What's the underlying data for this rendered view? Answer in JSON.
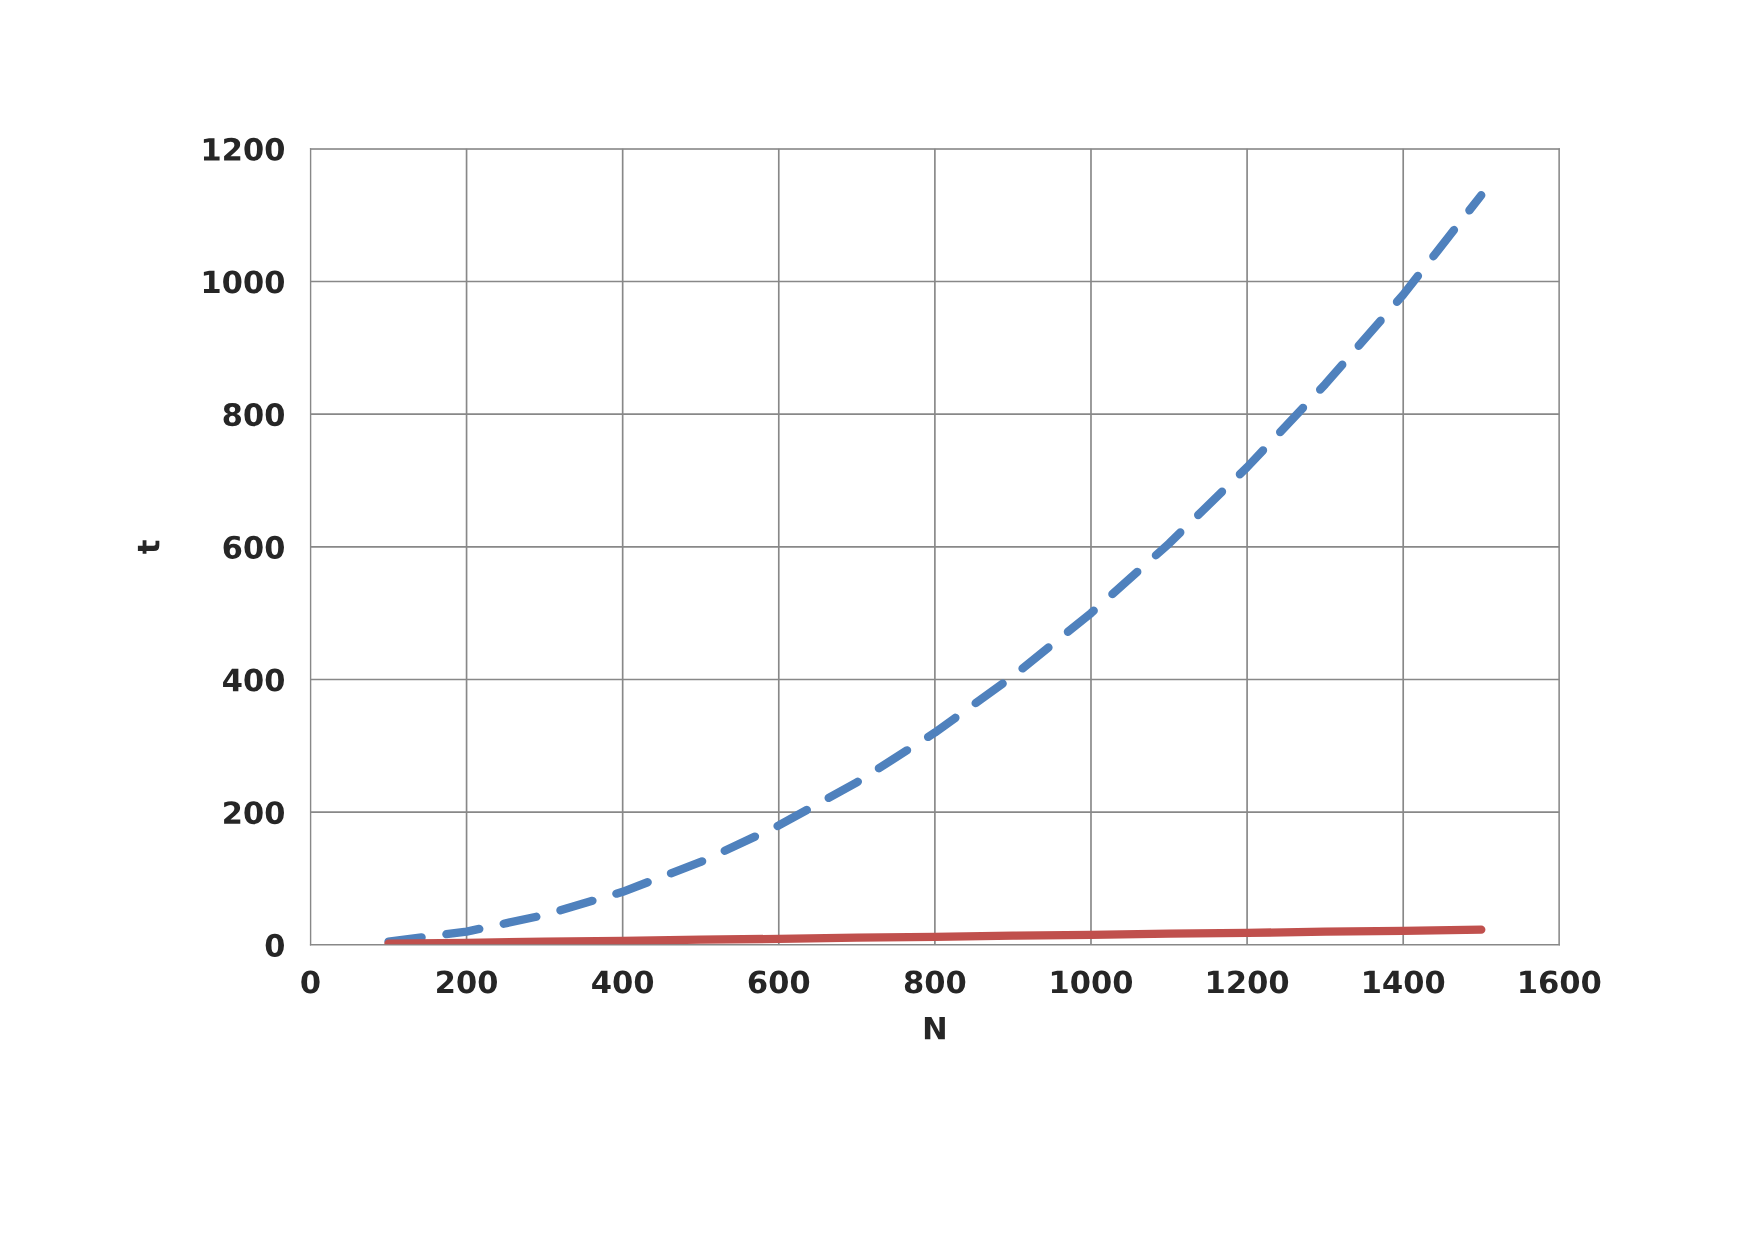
{
  "chart_data": {
    "type": "line",
    "xlabel": "N",
    "ylabel": "t",
    "x": [
      100,
      200,
      300,
      400,
      500,
      600,
      700,
      800,
      900,
      1000,
      1100,
      1200,
      1300,
      1400,
      1500
    ],
    "series": [
      {
        "color": "#4f81bd",
        "line_style": "dashed",
        "values": [
          5,
          20,
          45,
          80,
          125,
          180,
          245,
          320,
          405,
          500,
          605,
          720,
          845,
          980,
          1130
        ]
      },
      {
        "color": "#c0504d",
        "line_style": "solid",
        "values": [
          2,
          3,
          5,
          6,
          8,
          9,
          11,
          12,
          14,
          15,
          17,
          18,
          20,
          21,
          23
        ]
      }
    ],
    "xlim": [
      0,
      1600
    ],
    "xticks": [
      0,
      200,
      400,
      600,
      800,
      1000,
      1200,
      1400,
      1600
    ],
    "ylim": [
      0,
      1200
    ],
    "yticks": [
      0,
      200,
      400,
      600,
      800,
      1000,
      1200
    ],
    "grid": true,
    "legend": false,
    "marker": "none"
  }
}
